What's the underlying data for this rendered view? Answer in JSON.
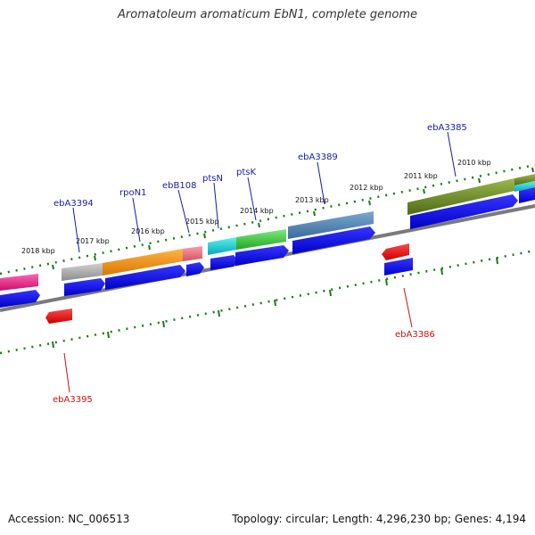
{
  "title": "Aromatoleum aromaticum EbN1, complete genome",
  "footer": {
    "accession": "Accession: NC_006513",
    "topology": "Topology: circular; Length: 4,296,230 bp; Genes: 4,194"
  },
  "kbp_labels": [
    "2018 kbp",
    "2017 kbp",
    "2016 kbp",
    "2015 kbp",
    "2014 kbp",
    "2013 kbp",
    "2012 kbp",
    "2011 kbp",
    "2010 kbp"
  ],
  "genes_forward": [
    "ebA3394",
    "rpoN1",
    "ebB108",
    "ptsN",
    "ptsK",
    "ebA3389",
    "ebA3385"
  ],
  "genes_reverse": [
    "ebA3395",
    "ebA3386"
  ],
  "colors": {
    "forward_label": "#1a1aa6",
    "reverse_label": "#cc1111",
    "tick": "#1a7a1a",
    "cds": "#0000ee",
    "reverse_cds": "#ee0000"
  }
}
